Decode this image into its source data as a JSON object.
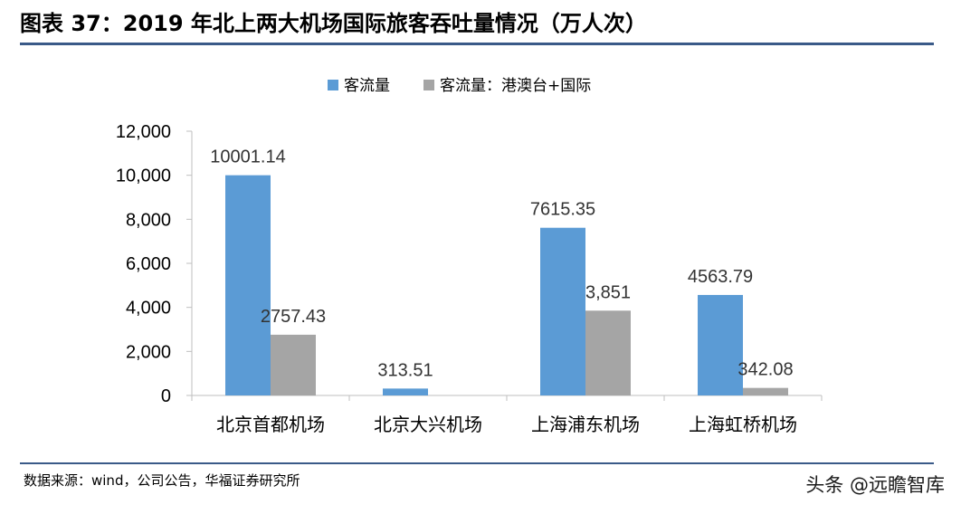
{
  "header": {
    "title": "图表 37：2019 年北上两大机场国际旅客吞吐量情况（万人次）"
  },
  "footer": {
    "source": "数据来源：wind，公司公告，华福证券研究所",
    "watermark": "头条 @远瞻智库"
  },
  "colors": {
    "series1": "#5b9bd5",
    "series2": "#a5a5a5",
    "rule": "#3a5a88",
    "axis": "#bfbfbf"
  },
  "chart_data": {
    "type": "bar",
    "categories": [
      "北京首都机场",
      "北京大兴机场",
      "上海浦东机场",
      "上海虹桥机场"
    ],
    "series": [
      {
        "name": "客流量",
        "values": [
          10001.14,
          313.51,
          7615.35,
          4563.79
        ],
        "labels": [
          "10001.14",
          "313.51",
          "7615.35",
          "4563.79"
        ]
      },
      {
        "name": "客流量：港澳台+国际",
        "values": [
          2757.43,
          null,
          3851,
          342.08
        ],
        "labels": [
          "2757.43",
          "",
          "3,851",
          "342.08"
        ]
      }
    ],
    "yticks": [
      "0",
      "2,000",
      "4,000",
      "6,000",
      "8,000",
      "10,000",
      "12,000"
    ],
    "ylim": [
      0,
      12000
    ],
    "legend": "top-center",
    "grid": false
  }
}
